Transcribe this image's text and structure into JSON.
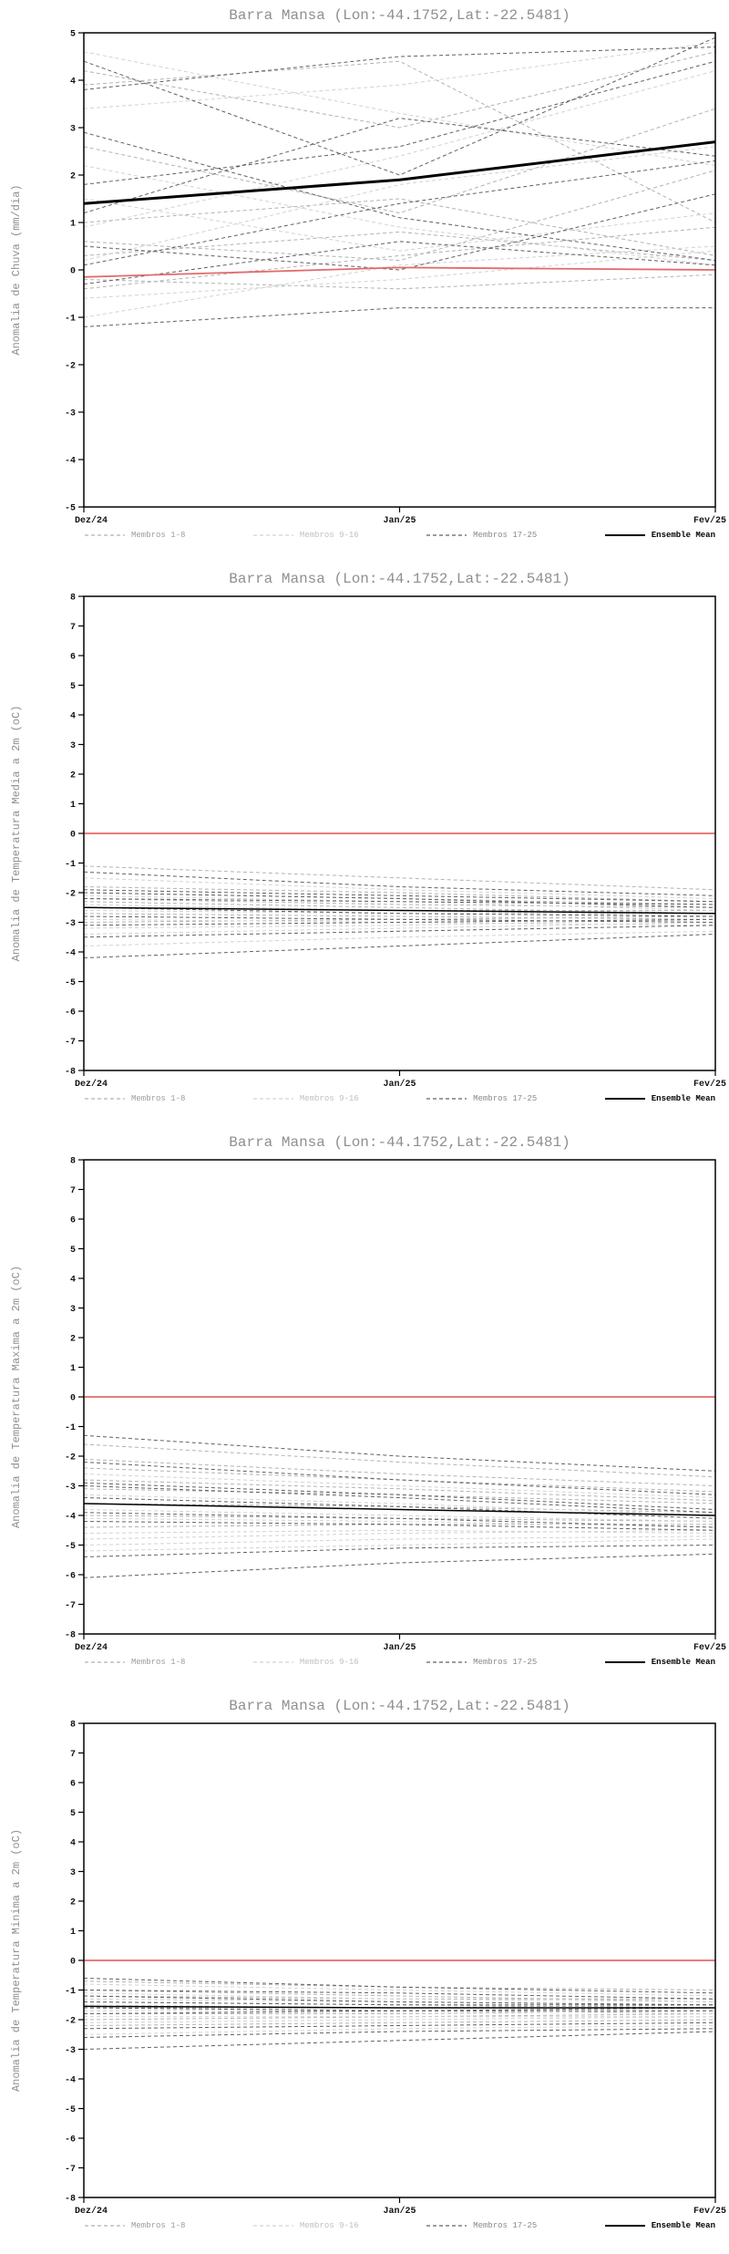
{
  "page": {
    "background": "#ffffff"
  },
  "legend": {
    "items": [
      {
        "label": "Membros 1-8",
        "color": "#b2b2b2",
        "label_color": "#9c9c9c",
        "dash": true
      },
      {
        "label": "Membros 9-16",
        "color": "#d2d2d2",
        "label_color": "#c0c0c0",
        "dash": true
      },
      {
        "label": "Membros 17-25",
        "color": "#606060",
        "label_color": "#8a8a8a",
        "dash": true
      },
      {
        "label": "Ensemble Mean",
        "color": "#000000",
        "label_color": "#000000",
        "dash": false
      }
    ]
  },
  "chart_data": [
    {
      "type": "line",
      "title": "Barra Mansa (Lon:-44.1752,Lat:-22.5481)",
      "ylabel": "Anomalia de Chuva (mm/dia)",
      "xlabel": "",
      "x_ticks": [
        "Dez/24",
        "Jan/25",
        "Fev/25"
      ],
      "ylim": [
        -5,
        5
      ],
      "ytick_step": 1,
      "grid": false,
      "legend_position": "bottom",
      "zero_line": {
        "color": "#e46a6a",
        "values": [
          -0.15,
          0.05,
          0.0
        ]
      },
      "mean": {
        "name": "Ensemble Mean",
        "color": "#000000",
        "width": 3,
        "values": [
          1.4,
          1.9,
          2.7
        ]
      },
      "groups": [
        {
          "name": "Membros 1-8",
          "color": "#b2b2b2",
          "members": [
            [
              4.2,
              3.0,
              4.6
            ],
            [
              3.9,
              4.4,
              1.0
            ],
            [
              2.6,
              1.2,
              3.4
            ],
            [
              0.3,
              0.8,
              0.2
            ],
            [
              -0.4,
              0.3,
              0.9
            ],
            [
              1.0,
              1.5,
              0.3
            ],
            [
              -0.2,
              -0.4,
              -0.1
            ],
            [
              0.6,
              0.2,
              2.1
            ]
          ]
        },
        {
          "name": "Membros 9-16",
          "color": "#d2d2d2",
          "members": [
            [
              4.6,
              3.3,
              2.2
            ],
            [
              3.4,
              3.9,
              4.8
            ],
            [
              1.5,
              0.4,
              1.2
            ],
            [
              -1.0,
              0.1,
              0.5
            ],
            [
              0.2,
              1.8,
              2.6
            ],
            [
              2.2,
              0.9,
              0.1
            ],
            [
              0.9,
              2.4,
              4.2
            ],
            [
              -0.6,
              -0.2,
              0.4
            ]
          ]
        },
        {
          "name": "Membros 17-25",
          "color": "#606060",
          "members": [
            [
              4.4,
              2.0,
              4.9
            ],
            [
              3.8,
              4.5,
              4.7
            ],
            [
              2.9,
              1.1,
              0.2
            ],
            [
              1.8,
              2.6,
              4.4
            ],
            [
              0.1,
              1.4,
              2.3
            ],
            [
              -1.2,
              -0.8,
              -0.8
            ],
            [
              0.5,
              0.0,
              1.6
            ],
            [
              1.2,
              3.2,
              2.4
            ],
            [
              -0.3,
              0.6,
              0.1
            ]
          ]
        }
      ]
    },
    {
      "type": "line",
      "title": "Barra Mansa (Lon:-44.1752,Lat:-22.5481)",
      "ylabel": "Anomalia de Temperatura Media a 2m (oC)",
      "xlabel": "",
      "x_ticks": [
        "Dez/24",
        "Jan/25",
        "Fev/25"
      ],
      "ylim": [
        -8,
        8
      ],
      "ytick_step": 1,
      "grid": false,
      "legend_position": "bottom",
      "zero_line": {
        "color": "#e46a6a",
        "values": [
          0,
          0,
          0
        ]
      },
      "mean": {
        "name": "Ensemble Mean",
        "color": "#000000",
        "width": 1.5,
        "values": [
          -2.5,
          -2.6,
          -2.7
        ]
      },
      "groups": [
        {
          "name": "Membros 1-8",
          "color": "#b2b2b2",
          "members": [
            [
              -1.1,
              -1.5,
              -1.9
            ],
            [
              -2.0,
              -2.2,
              -2.4
            ],
            [
              -2.5,
              -2.6,
              -2.6
            ],
            [
              -3.0,
              -2.9,
              -2.8
            ],
            [
              -2.2,
              -2.4,
              -2.5
            ],
            [
              -1.8,
              -2.0,
              -2.3
            ],
            [
              -2.7,
              -2.8,
              -2.9
            ],
            [
              -2.3,
              -2.5,
              -2.7
            ]
          ]
        },
        {
          "name": "Membros 9-16",
          "color": "#d2d2d2",
          "members": [
            [
              -3.4,
              -3.2,
              -3.0
            ],
            [
              -3.8,
              -3.5,
              -3.3
            ],
            [
              -2.9,
              -3.0,
              -3.1
            ],
            [
              -2.1,
              -2.3,
              -2.6
            ],
            [
              -2.6,
              -2.7,
              -2.7
            ],
            [
              -3.2,
              -3.1,
              -2.9
            ],
            [
              -1.5,
              -1.9,
              -2.2
            ],
            [
              -2.4,
              -2.6,
              -2.8
            ]
          ]
        },
        {
          "name": "Membros 17-25",
          "color": "#606060",
          "members": [
            [
              -4.2,
              -3.8,
              -3.4
            ],
            [
              -1.3,
              -1.8,
              -2.1
            ],
            [
              -2.8,
              -2.9,
              -3.0
            ],
            [
              -2.2,
              -2.3,
              -2.4
            ],
            [
              -3.1,
              -3.0,
              -2.9
            ],
            [
              -2.0,
              -2.2,
              -2.5
            ],
            [
              -2.5,
              -2.7,
              -2.8
            ],
            [
              -1.9,
              -2.1,
              -2.3
            ],
            [
              -3.5,
              -3.3,
              -3.1
            ]
          ]
        }
      ]
    },
    {
      "type": "line",
      "title": "Barra Mansa (Lon:-44.1752,Lat:-22.5481)",
      "ylabel": "Anomalia de Temperatura Maxima a 2m (oC)",
      "xlabel": "",
      "x_ticks": [
        "Dez/24",
        "Jan/25",
        "Fev/25"
      ],
      "ylim": [
        -8,
        8
      ],
      "ytick_step": 1,
      "grid": false,
      "legend_position": "bottom",
      "zero_line": {
        "color": "#e46a6a",
        "values": [
          0,
          0,
          0
        ]
      },
      "mean": {
        "name": "Ensemble Mean",
        "color": "#000000",
        "width": 1.5,
        "values": [
          -3.6,
          -3.8,
          -4.0
        ]
      },
      "groups": [
        {
          "name": "Membros 1-8",
          "color": "#b2b2b2",
          "members": [
            [
              -1.6,
              -2.2,
              -2.7
            ],
            [
              -2.4,
              -2.8,
              -3.2
            ],
            [
              -3.1,
              -3.3,
              -3.6
            ],
            [
              -4.0,
              -4.1,
              -4.2
            ],
            [
              -2.8,
              -3.1,
              -3.5
            ],
            [
              -3.6,
              -3.7,
              -3.9
            ],
            [
              -2.1,
              -2.6,
              -3.0
            ],
            [
              -4.4,
              -4.3,
              -4.3
            ]
          ]
        },
        {
          "name": "Membros 9-16",
          "color": "#d2d2d2",
          "members": [
            [
              -4.8,
              -4.6,
              -4.5
            ],
            [
              -5.2,
              -5.0,
              -4.8
            ],
            [
              -3.3,
              -3.6,
              -4.0
            ],
            [
              -4.1,
              -4.2,
              -4.4
            ],
            [
              -2.6,
              -3.0,
              -3.4
            ],
            [
              -4.6,
              -4.5,
              -4.6
            ],
            [
              -3.8,
              -4.0,
              -4.2
            ],
            [
              -5.0,
              -4.8,
              -4.7
            ]
          ]
        },
        {
          "name": "Membros 17-25",
          "color": "#606060",
          "members": [
            [
              -6.1,
              -5.6,
              -5.3
            ],
            [
              -1.3,
              -2.0,
              -2.5
            ],
            [
              -3.4,
              -3.7,
              -4.1
            ],
            [
              -2.9,
              -3.3,
              -3.8
            ],
            [
              -4.2,
              -4.3,
              -4.5
            ],
            [
              -3.0,
              -3.4,
              -3.9
            ],
            [
              -5.4,
              -5.1,
              -5.0
            ],
            [
              -2.2,
              -2.8,
              -3.3
            ],
            [
              -3.9,
              -4.1,
              -4.4
            ]
          ]
        }
      ]
    },
    {
      "type": "line",
      "title": "Barra Mansa (Lon:-44.1752,Lat:-22.5481)",
      "ylabel": "Anomalia de Temperatura Minima a 2m (oC)",
      "xlabel": "",
      "x_ticks": [
        "Dez/24",
        "Jan/25",
        "Fev/25"
      ],
      "ylim": [
        -8,
        8
      ],
      "ytick_step": 1,
      "grid": false,
      "legend_position": "bottom",
      "zero_line": {
        "color": "#e46a6a",
        "values": [
          0,
          0,
          0
        ]
      },
      "mean": {
        "name": "Ensemble Mean",
        "color": "#000000",
        "width": 1.5,
        "values": [
          -1.55,
          -1.6,
          -1.6
        ]
      },
      "groups": [
        {
          "name": "Membros 1-8",
          "color": "#b2b2b2",
          "members": [
            [
              -0.7,
              -0.9,
              -1.0
            ],
            [
              -1.2,
              -1.3,
              -1.3
            ],
            [
              -1.6,
              -1.6,
              -1.5
            ],
            [
              -2.0,
              -1.9,
              -1.8
            ],
            [
              -1.4,
              -1.5,
              -1.6
            ],
            [
              -1.0,
              -1.2,
              -1.4
            ],
            [
              -1.8,
              -1.8,
              -1.7
            ],
            [
              -2.2,
              -2.1,
              -2.0
            ]
          ]
        },
        {
          "name": "Membros 9-16",
          "color": "#d2d2d2",
          "members": [
            [
              -2.5,
              -2.3,
              -2.2
            ],
            [
              -1.3,
              -1.4,
              -1.5
            ],
            [
              -1.7,
              -1.7,
              -1.8
            ],
            [
              -0.8,
              -1.0,
              -1.2
            ],
            [
              -2.1,
              -2.0,
              -1.9
            ],
            [
              -1.5,
              -1.6,
              -1.6
            ],
            [
              -1.9,
              -1.9,
              -1.9
            ],
            [
              -1.1,
              -1.3,
              -1.4
            ]
          ]
        },
        {
          "name": "Membros 17-25",
          "color": "#606060",
          "members": [
            [
              -3.0,
              -2.7,
              -2.4
            ],
            [
              -0.6,
              -0.9,
              -1.1
            ],
            [
              -1.4,
              -1.5,
              -1.5
            ],
            [
              -2.3,
              -2.2,
              -2.1
            ],
            [
              -1.6,
              -1.7,
              -1.7
            ],
            [
              -1.2,
              -1.4,
              -1.5
            ],
            [
              -2.6,
              -2.4,
              -2.3
            ],
            [
              -1.8,
              -1.7,
              -1.6
            ],
            [
              -1.0,
              -1.1,
              -1.3
            ]
          ]
        }
      ]
    }
  ]
}
